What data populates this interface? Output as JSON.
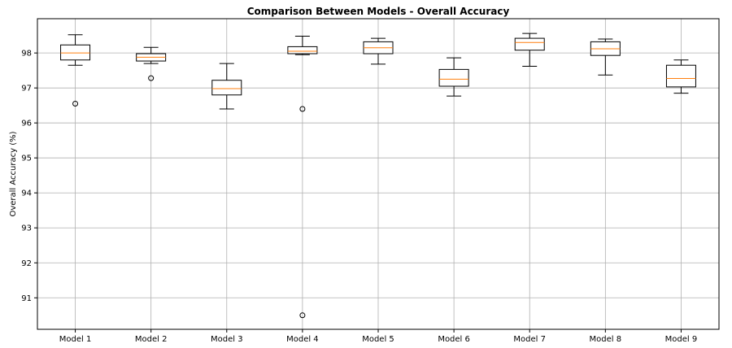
{
  "chart_data": {
    "type": "boxplot",
    "title": "Comparison Between Models - Overall Accuracy",
    "xlabel": "",
    "ylabel": "Overall Accuracy (%)",
    "ylim": [
      90.1,
      98.98
    ],
    "yticks": [
      91,
      92,
      93,
      94,
      95,
      96,
      97,
      98
    ],
    "grid": true,
    "categories": [
      "Model 1",
      "Model 2",
      "Model 3",
      "Model 4",
      "Model 5",
      "Model 6",
      "Model 7",
      "Model 8",
      "Model 9"
    ],
    "boxes": [
      {
        "whisker_low": 97.65,
        "q1": 97.8,
        "median": 98.0,
        "q3": 98.23,
        "whisker_high": 98.52,
        "outliers": [
          96.55
        ]
      },
      {
        "whisker_low": 97.7,
        "q1": 97.77,
        "median": 97.88,
        "q3": 97.98,
        "whisker_high": 98.16,
        "outliers": [
          97.28
        ]
      },
      {
        "whisker_low": 96.4,
        "q1": 96.8,
        "median": 96.98,
        "q3": 97.22,
        "whisker_high": 97.7,
        "outliers": []
      },
      {
        "whisker_low": 97.95,
        "q1": 97.98,
        "median": 98.05,
        "q3": 98.18,
        "whisker_high": 98.48,
        "outliers": [
          96.4,
          90.5
        ]
      },
      {
        "whisker_low": 97.68,
        "q1": 97.98,
        "median": 98.15,
        "q3": 98.32,
        "whisker_high": 98.42,
        "outliers": []
      },
      {
        "whisker_low": 96.77,
        "q1": 97.05,
        "median": 97.25,
        "q3": 97.53,
        "whisker_high": 97.86,
        "outliers": []
      },
      {
        "whisker_low": 97.62,
        "q1": 98.08,
        "median": 98.3,
        "q3": 98.42,
        "whisker_high": 98.56,
        "outliers": []
      },
      {
        "whisker_low": 97.37,
        "q1": 97.93,
        "median": 98.12,
        "q3": 98.32,
        "whisker_high": 98.4,
        "outliers": []
      },
      {
        "whisker_low": 96.85,
        "q1": 97.03,
        "median": 97.27,
        "q3": 97.65,
        "whisker_high": 97.8,
        "outliers": []
      }
    ],
    "colors": {
      "box": "#000000",
      "median": "#ff7f0e",
      "grid": "#b0b0b0",
      "outlier": "#000000"
    }
  }
}
